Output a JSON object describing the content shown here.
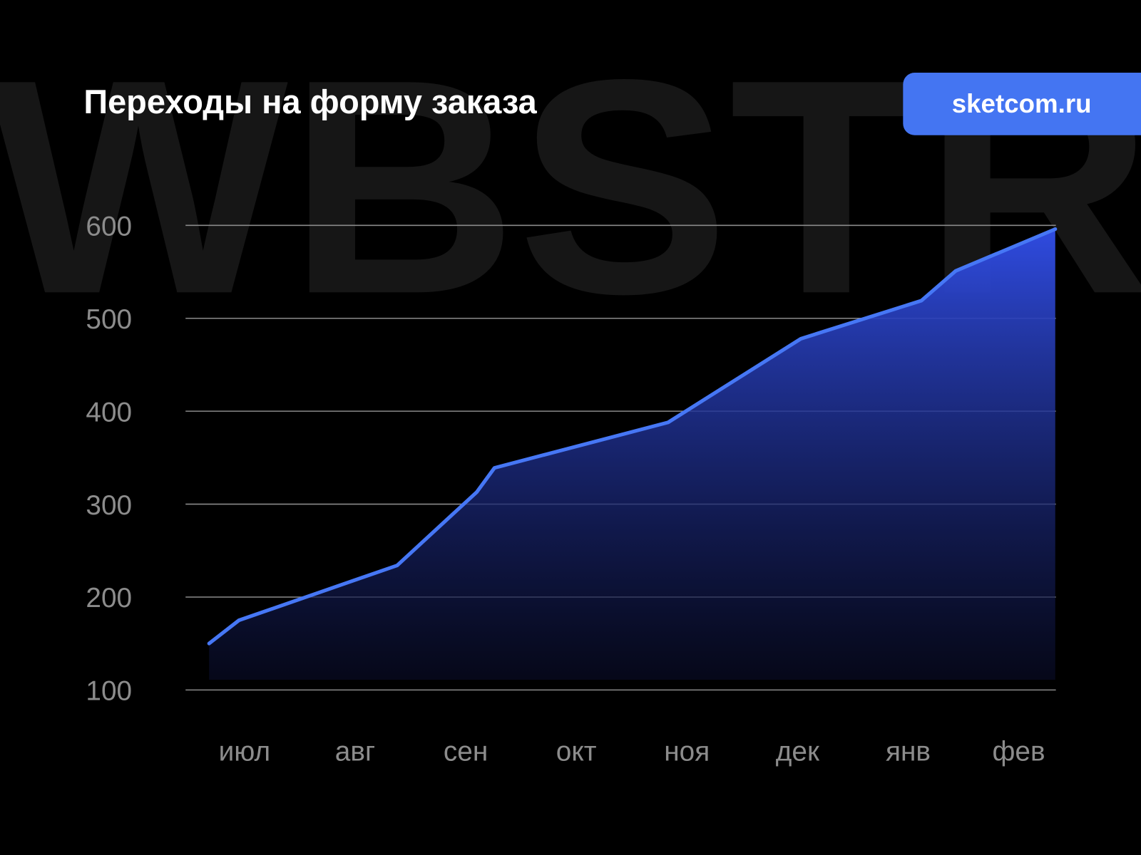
{
  "watermark": "WBSTR",
  "badge": {
    "label": "sketcom.ru",
    "color": "#4475F2"
  },
  "colors": {
    "background": "#000000",
    "line": "#4677F5",
    "fill_top": "#2F4BE0",
    "grid": "#8a8a8a",
    "tick_text": "#8c8c8c",
    "watermark": "#161616"
  },
  "chart_data": {
    "type": "area",
    "title": "Переходы на форму заказа",
    "xlabel": "",
    "ylabel": "",
    "categories": [
      "июл",
      "авг",
      "сен",
      "окт",
      "ноя",
      "дек",
      "янв",
      "фев"
    ],
    "ylim": [
      100,
      600
    ],
    "yticks": [
      "100",
      "200",
      "300",
      "400",
      "500",
      "600"
    ],
    "grid": true,
    "x_unit_note_free": true,
    "points": [
      {
        "x": -0.32,
        "y": 150
      },
      {
        "x": -0.05,
        "y": 175
      },
      {
        "x": 1.38,
        "y": 234
      },
      {
        "x": 2.1,
        "y": 313
      },
      {
        "x": 2.26,
        "y": 339
      },
      {
        "x": 3.83,
        "y": 388
      },
      {
        "x": 5.03,
        "y": 478
      },
      {
        "x": 6.12,
        "y": 519
      },
      {
        "x": 6.43,
        "y": 551
      },
      {
        "x": 7.33,
        "y": 596
      }
    ]
  }
}
